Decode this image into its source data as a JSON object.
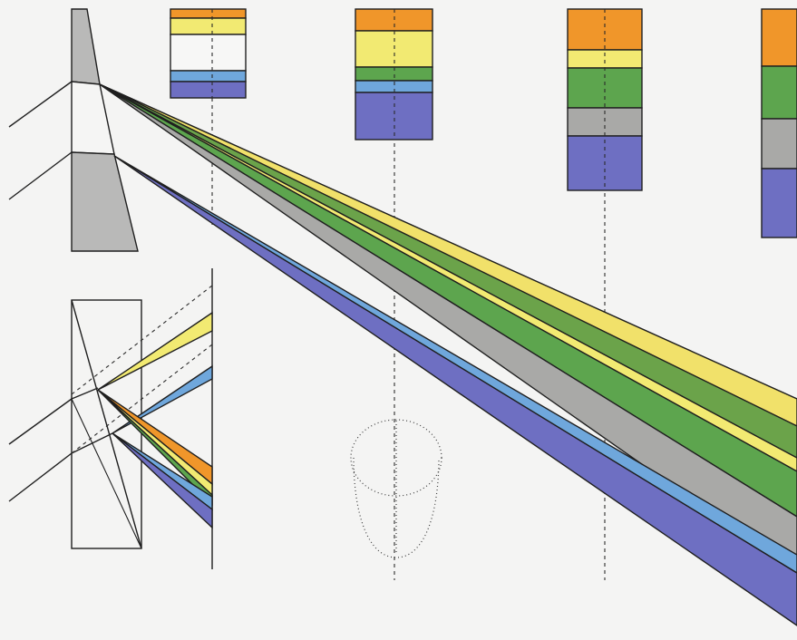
{
  "colors": {
    "orange": "#f0962a",
    "yellow": "#f2ea72",
    "green": "#5da54e",
    "gray": "#a9a9a7",
    "blue": "#6fa7dc",
    "violet": "#6e6fc2",
    "prism_gray": "#b9b9b8",
    "background": "#f4f4f3",
    "line": "#1f1f1f"
  },
  "diagram": {
    "panels": [
      "top-prism-dispersion",
      "lower-prism-detail",
      "spectrum-swatches"
    ],
    "band_order": [
      "orange",
      "yellow",
      "green",
      "gray",
      "blue",
      "violet"
    ]
  }
}
